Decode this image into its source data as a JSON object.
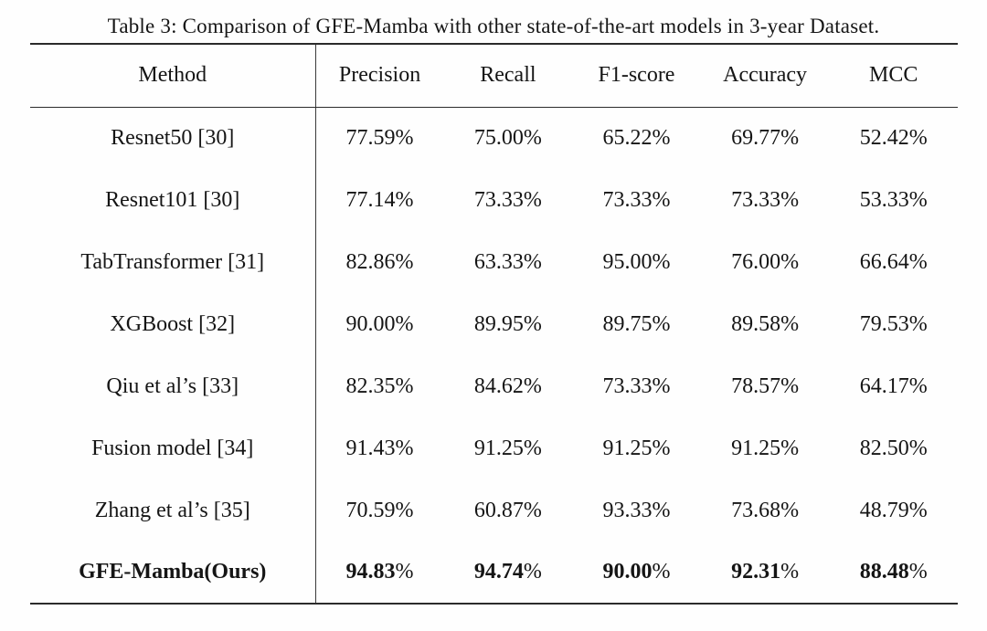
{
  "table": {
    "caption": "Table 3: Comparison of GFE-Mamba with other state-of-the-art models in 3-year Dataset.",
    "columns": [
      "Method",
      "Precision",
      "Recall",
      "F1-score",
      "Accuracy",
      "MCC"
    ],
    "rows": [
      {
        "method": "Resnet50 [30]",
        "values": [
          "77.59%",
          "75.00%",
          "65.22%",
          "69.77%",
          "52.42%"
        ],
        "bold": false
      },
      {
        "method": "Resnet101 [30]",
        "values": [
          "77.14%",
          "73.33%",
          "73.33%",
          "73.33%",
          "53.33%"
        ],
        "bold": false
      },
      {
        "method": "TabTransformer [31]",
        "values": [
          "82.86%",
          "63.33%",
          "95.00%",
          "76.00%",
          "66.64%"
        ],
        "bold": false
      },
      {
        "method": "XGBoost [32]",
        "values": [
          "90.00%",
          "89.95%",
          "89.75%",
          "89.58%",
          "79.53%"
        ],
        "bold": false
      },
      {
        "method": "Qiu et al’s [33]",
        "values": [
          "82.35%",
          "84.62%",
          "73.33%",
          "78.57%",
          "64.17%"
        ],
        "bold": false
      },
      {
        "method": "Fusion model [34]",
        "values": [
          "91.43%",
          "91.25%",
          "91.25%",
          "91.25%",
          "82.50%"
        ],
        "bold": false
      },
      {
        "method": "Zhang et al’s [35]",
        "values": [
          "70.59%",
          "60.87%",
          "93.33%",
          "73.68%",
          "48.79%"
        ],
        "bold": false
      },
      {
        "method": "GFE-Mamba(Ours)",
        "values": [
          "94.83%",
          "94.74%",
          "90.00%",
          "92.31%",
          "88.48%"
        ],
        "bold": true
      }
    ]
  }
}
